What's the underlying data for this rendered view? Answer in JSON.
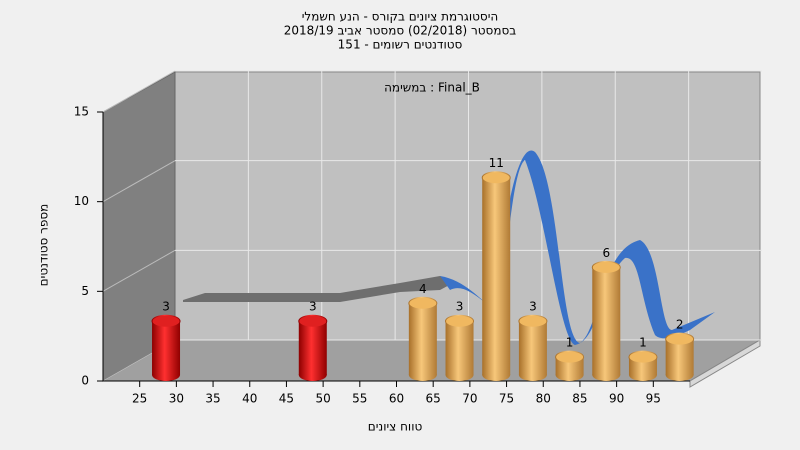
{
  "chart_data": {
    "type": "histogram",
    "title": "היסטוגרמת ציונים בקורס - הנע חשמלי",
    "subtitle": "בסמסטר (02/2018) סמסטר אביב 2018/19",
    "subtitle2": "סטודנטים רשומים - 151",
    "annotation": "במשימה : Final_B",
    "x_label": "טווח ציונים",
    "y_label": "מספר סטודנטים",
    "bins": [
      25,
      30,
      35,
      40,
      45,
      50,
      55,
      60,
      65,
      70,
      75,
      80,
      85,
      90,
      95,
      100
    ],
    "counts": [
      3,
      0,
      0,
      0,
      3,
      0,
      0,
      4,
      3,
      11,
      3,
      1,
      6,
      1,
      2
    ],
    "colors": [
      "red",
      "red",
      "red",
      "red",
      "red",
      "red",
      "orange",
      "orange",
      "orange",
      "orange",
      "orange",
      "orange",
      "orange",
      "orange",
      "orange"
    ],
    "xlim": [
      20,
      100
    ],
    "xticks": [
      25,
      30,
      35,
      40,
      45,
      50,
      55,
      60,
      65,
      70,
      75,
      80,
      85,
      90,
      95
    ],
    "ylim": [
      0,
      15
    ],
    "yticks": [
      0,
      5,
      10,
      15
    ],
    "grid": true
  }
}
